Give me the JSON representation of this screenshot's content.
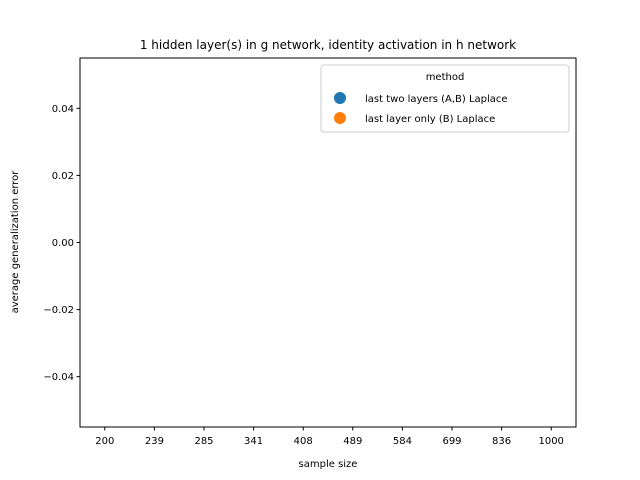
{
  "chart_data": {
    "type": "scatter",
    "title": "1 hidden layer(s) in g network, identity activation in h network",
    "xlabel": "sample size",
    "ylabel": "average generalization error",
    "categories": [
      "200",
      "239",
      "285",
      "341",
      "408",
      "489",
      "584",
      "699",
      "836",
      "1000"
    ],
    "ylim": [
      -0.055,
      0.055
    ],
    "yticks": [
      -0.04,
      -0.02,
      0.0,
      0.02,
      0.04
    ],
    "ytick_labels": [
      "−0.04",
      "−0.02",
      "0.00",
      "0.02",
      "0.04"
    ],
    "grid": false,
    "legend": {
      "title": "method",
      "placement": "top-right"
    },
    "series": [
      {
        "name": "last two layers (A,B) Laplace",
        "color": "#1f77b4",
        "values": []
      },
      {
        "name": "last layer only (B) Laplace",
        "color": "#ff7f0e",
        "values": []
      }
    ]
  }
}
